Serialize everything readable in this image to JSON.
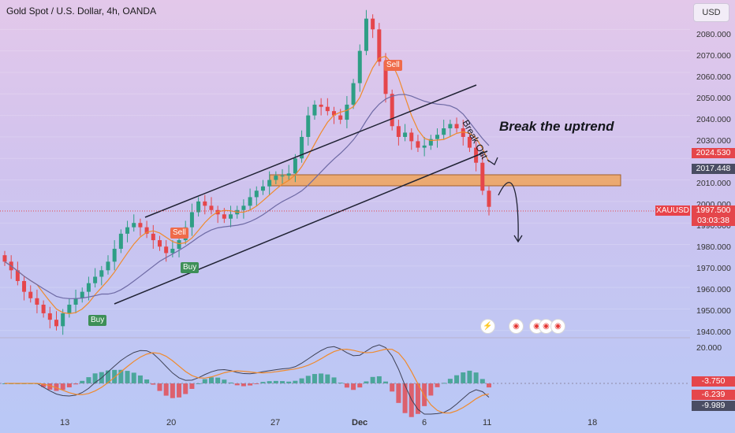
{
  "header": {
    "title": "Gold Spot / U.S. Dollar, 4h, OANDA",
    "currency_button": "USD"
  },
  "price_axis": {
    "labels": [
      "2080.000",
      "2070.000",
      "2060.000",
      "2050.000",
      "2040.000",
      "2030.000",
      "2010.000",
      "2000.000",
      "1990.000",
      "1980.000",
      "1970.000",
      "1960.000",
      "1950.000",
      "1940.000"
    ]
  },
  "price_tags": {
    "level_upper": "2024.530",
    "level_lower": "2017.448",
    "symbol": "XAUUSD",
    "last_price": "1997.500",
    "countdown": "03:03:38"
  },
  "indicator_axis": {
    "top": "20.000",
    "hist": "-3.750",
    "signal": "-6.239",
    "macd": "-9.989"
  },
  "time_axis": [
    "13",
    "20",
    "27",
    "Dec",
    "6",
    "11",
    "18"
  ],
  "annotations": {
    "headline": "Break the uptrend",
    "breakout": "Break Out"
  },
  "signals": {
    "sell1": "Sell",
    "sell2": "Sell",
    "buy1": "Buy",
    "buy2": "Buy"
  },
  "colors": {
    "up": "#2e9e85",
    "down": "#e5464b",
    "ma_fast": "#f08a2c",
    "ma_slow": "#6e6aa5",
    "zone": "#f0a55a",
    "sell": "#ef6b4a",
    "buy": "#3d8f57"
  },
  "chart_data": {
    "type": "candlestick",
    "symbol": "XAUUSD",
    "timeframe": "4h",
    "close_series": [
      1972,
      1968,
      1963,
      1958,
      1955,
      1952,
      1948,
      1945,
      1942,
      1948,
      1952,
      1955,
      1958,
      1962,
      1965,
      1968,
      1972,
      1978,
      1985,
      1988,
      1990,
      1988,
      1985,
      1982,
      1979,
      1976,
      1978,
      1982,
      1988,
      1995,
      2000,
      1998,
      1996,
      1994,
      1992,
      1994,
      1996,
      1998,
      2002,
      2005,
      2007,
      2010,
      2012,
      2012,
      2013,
      2020,
      2030,
      2040,
      2045,
      2044,
      2042,
      2040,
      2038,
      2045,
      2055,
      2070,
      2085,
      2080,
      2065,
      2050,
      2035,
      2030,
      2032,
      2028,
      2025,
      2026,
      2029,
      2031,
      2034,
      2036,
      2034,
      2030,
      2025,
      2018,
      2005,
      1997.5
    ],
    "ylim": [
      1937,
      2090
    ],
    "resistance_zone": [
      2010,
      2015
    ],
    "last_price": 1997.5,
    "macd": {
      "hist": -3.75,
      "signal": -6.239,
      "macd": -9.989
    }
  }
}
